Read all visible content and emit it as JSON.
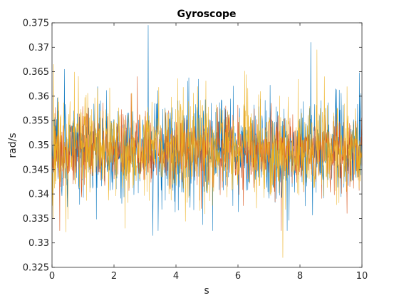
{
  "chart_data": {
    "type": "line",
    "title": "Gyroscope",
    "xlabel": "s",
    "ylabel": "rad/s",
    "xlim": [
      0,
      10
    ],
    "ylim": [
      0.325,
      0.375
    ],
    "xticks": [
      0,
      2,
      4,
      6,
      8,
      10
    ],
    "xtick_labels": [
      "0",
      "2",
      "4",
      "6",
      "8",
      "10"
    ],
    "yticks": [
      0.325,
      0.33,
      0.335,
      0.34,
      0.345,
      0.35,
      0.355,
      0.36,
      0.365,
      0.37,
      0.375
    ],
    "ytick_labels": [
      "0.325",
      "0.33",
      "0.335",
      "0.34",
      "0.345",
      "0.35",
      "0.355",
      "0.36",
      "0.365",
      "0.37",
      "0.375"
    ],
    "grid": false,
    "legend": "none",
    "series": [
      {
        "color": "#0072BD",
        "approx_mean": 0.349,
        "approx_min": 0.332,
        "approx_max": 0.3745,
        "samples": 1000,
        "notable_points": [
          {
            "x": 0.2,
            "y": 0.357
          },
          {
            "x": 3.1,
            "y": 0.3745
          },
          {
            "x": 3.25,
            "y": 0.3315
          },
          {
            "x": 8.35,
            "y": 0.371
          },
          {
            "x": 0.4,
            "y": 0.3655
          }
        ]
      },
      {
        "color": "#D95319",
        "approx_mean": 0.349,
        "approx_min": 0.3325,
        "approx_max": 0.364,
        "samples": 1000,
        "notable_points": [
          {
            "x": 0.25,
            "y": 0.3325
          },
          {
            "x": 7.4,
            "y": 0.3325
          },
          {
            "x": 2.75,
            "y": 0.364
          }
        ]
      },
      {
        "color": "#EDB120",
        "approx_mean": 0.3495,
        "approx_min": 0.327,
        "approx_max": 0.3695,
        "samples": 1000,
        "notable_points": [
          {
            "x": 0.05,
            "y": 0.3665
          },
          {
            "x": 7.45,
            "y": 0.327
          },
          {
            "x": 8.55,
            "y": 0.3695
          },
          {
            "x": 2.35,
            "y": 0.333
          }
        ]
      }
    ]
  }
}
